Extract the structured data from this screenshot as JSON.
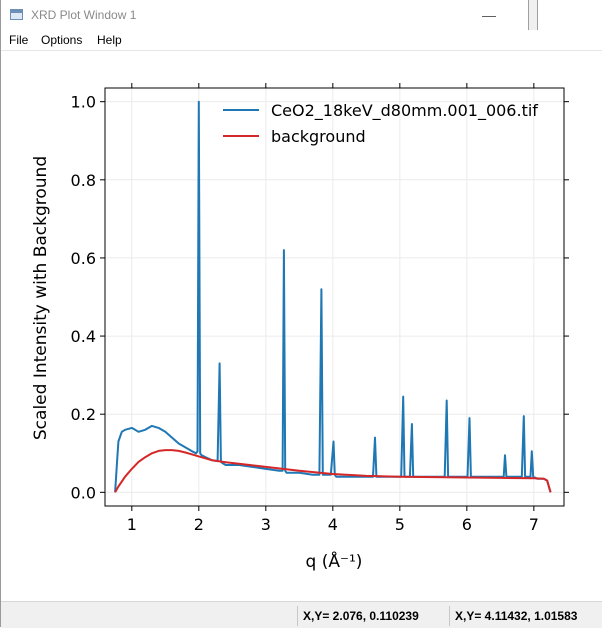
{
  "window": {
    "title": "XRD Plot Window 1",
    "minimize_glyph": "—",
    "maximize_glyph": "☐"
  },
  "menu": [
    "File",
    "Options",
    "Help"
  ],
  "status": {
    "cell1": "X,Y= 2.076, 0.110239",
    "cell2": "X,Y= 4.11432, 1.01583"
  },
  "colors": {
    "data_series": "#1f77b4",
    "background_series": "#d62728"
  },
  "chart_data": {
    "type": "line",
    "xlabel": "q (Å⁻¹)",
    "ylabel": "Scaled Intensity with Background",
    "xlim": [
      0.6,
      7.45
    ],
    "ylim": [
      -0.035,
      1.035
    ],
    "xticks": [
      1,
      2,
      3,
      4,
      5,
      6,
      7
    ],
    "xtick_labels": [
      "1",
      "2",
      "3",
      "4",
      "5",
      "6",
      "7"
    ],
    "yticks": [
      0.0,
      0.2,
      0.4,
      0.6,
      0.8,
      1.0
    ],
    "ytick_labels": [
      "0.0",
      "0.2",
      "0.4",
      "0.6",
      "0.8",
      "1.0"
    ],
    "grid": true,
    "legend_position": "top-right",
    "series": [
      {
        "name": "CeO2_18keV_d80mm.001_006.tif",
        "color": "#1f77b4",
        "x": [
          0.75,
          0.78,
          0.8,
          0.85,
          0.9,
          1.0,
          1.05,
          1.1,
          1.2,
          1.3,
          1.4,
          1.5,
          1.6,
          1.7,
          1.8,
          1.9,
          1.96,
          1.98,
          2.0,
          2.02,
          2.04,
          2.1,
          2.2,
          2.28,
          2.31,
          2.33,
          2.35,
          2.4,
          2.6,
          2.8,
          3.0,
          3.2,
          3.25,
          3.27,
          3.29,
          3.31,
          3.35,
          3.5,
          3.7,
          3.8,
          3.83,
          3.85,
          3.87,
          3.9,
          3.97,
          4.01,
          4.03,
          4.05,
          4.1,
          4.3,
          4.6,
          4.63,
          4.65,
          4.67,
          4.7,
          4.9,
          5.02,
          5.05,
          5.07,
          5.1,
          5.15,
          5.18,
          5.2,
          5.24,
          5.4,
          5.6,
          5.67,
          5.7,
          5.72,
          5.75,
          5.9,
          6.01,
          6.04,
          6.06,
          6.1,
          6.4,
          6.55,
          6.57,
          6.59,
          6.65,
          6.82,
          6.85,
          6.87,
          6.92,
          6.95,
          6.97,
          6.99,
          7.05,
          7.15,
          7.2,
          7.23,
          7.25
        ],
        "values": [
          0.0,
          0.08,
          0.13,
          0.155,
          0.16,
          0.165,
          0.16,
          0.155,
          0.16,
          0.17,
          0.165,
          0.155,
          0.14,
          0.125,
          0.115,
          0.105,
          0.1,
          0.105,
          1.0,
          0.1,
          0.095,
          0.09,
          0.082,
          0.08,
          0.33,
          0.078,
          0.075,
          0.07,
          0.07,
          0.065,
          0.06,
          0.055,
          0.055,
          0.62,
          0.055,
          0.05,
          0.05,
          0.05,
          0.045,
          0.045,
          0.52,
          0.045,
          0.045,
          0.045,
          0.045,
          0.13,
          0.045,
          0.04,
          0.04,
          0.04,
          0.04,
          0.14,
          0.04,
          0.04,
          0.04,
          0.04,
          0.04,
          0.245,
          0.04,
          0.04,
          0.04,
          0.175,
          0.04,
          0.04,
          0.04,
          0.04,
          0.04,
          0.235,
          0.04,
          0.04,
          0.04,
          0.04,
          0.19,
          0.04,
          0.04,
          0.04,
          0.04,
          0.095,
          0.04,
          0.04,
          0.04,
          0.195,
          0.04,
          0.04,
          0.04,
          0.105,
          0.04,
          0.035,
          0.035,
          0.03,
          0.01,
          0.0
        ]
      },
      {
        "name": "background",
        "color": "#d62728",
        "x": [
          0.75,
          0.8,
          0.9,
          1.0,
          1.1,
          1.2,
          1.3,
          1.4,
          1.5,
          1.6,
          1.7,
          1.8,
          1.9,
          2.0,
          2.2,
          2.4,
          2.6,
          3.0,
          3.5,
          4.0,
          4.5,
          5.0,
          5.5,
          6.0,
          6.5,
          7.0,
          7.15,
          7.2,
          7.25
        ],
        "values": [
          0.0,
          0.015,
          0.04,
          0.06,
          0.078,
          0.09,
          0.1,
          0.106,
          0.108,
          0.108,
          0.106,
          0.102,
          0.097,
          0.092,
          0.082,
          0.077,
          0.073,
          0.065,
          0.055,
          0.047,
          0.042,
          0.04,
          0.039,
          0.038,
          0.037,
          0.036,
          0.035,
          0.03,
          0.0
        ]
      }
    ]
  }
}
